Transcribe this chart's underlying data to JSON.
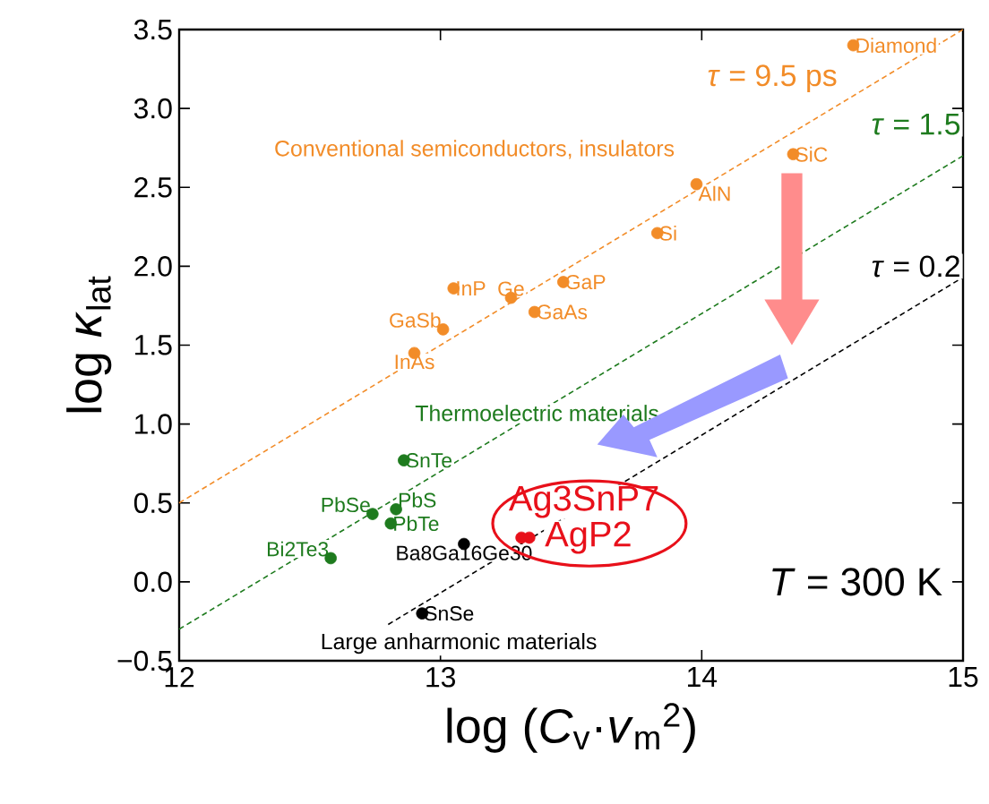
{
  "chart_data": {
    "type": "scatter",
    "xlabel": "log (*C*$_{v}$·*v*$_{m}$$^{2}$)",
    "ylabel": "log *κ*$_{lat}$",
    "xlim": [
      12,
      15
    ],
    "ylim": [
      -0.5,
      3.5
    ],
    "xticks": [
      12,
      13,
      14,
      15
    ],
    "yticks": [
      {
        "value": -0.5,
        "label": "−0.5"
      },
      {
        "value": 0,
        "label": "0.0"
      },
      {
        "value": 0.5,
        "label": "0.5"
      },
      {
        "value": 1,
        "label": "1.0"
      },
      {
        "value": 1.5,
        "label": "1.5"
      },
      {
        "value": 2,
        "label": "2.0"
      },
      {
        "value": 2.5,
        "label": "2.5"
      },
      {
        "value": 3,
        "label": "3.0"
      },
      {
        "value": 3.5,
        "label": "3.5"
      }
    ],
    "grid": false,
    "series": [
      {
        "type": "line",
        "line_style": "dashed",
        "marker": "none",
        "color": "#f28c28",
        "x": [
          12,
          15
        ],
        "values": [
          0.5,
          3.5
        ]
      },
      {
        "type": "line",
        "line_style": "dashed",
        "marker": "none",
        "color": "#1e7b1e",
        "x": [
          12,
          15
        ],
        "values": [
          -0.3,
          2.7
        ]
      },
      {
        "type": "line",
        "line_style": "dashed",
        "marker": "none",
        "color": "#000000",
        "x": [
          12.8,
          15
        ],
        "values": [
          -0.27,
          1.93
        ]
      },
      {
        "marker": "circle",
        "color": "#f28c28",
        "x": [
          14.58,
          14.35,
          13.98,
          13.83,
          13.47,
          13.36,
          13.27,
          13.05,
          13.01,
          12.9
        ],
        "values": [
          3.4,
          2.71,
          2.52,
          2.21,
          1.9,
          1.71,
          1.8,
          1.86,
          1.6,
          1.45
        ],
        "value_labels": [
          "Diamond",
          "SiC",
          "AlN",
          "Si",
          "GaP",
          "GaAs",
          "Ge",
          "InP",
          "GaSb",
          "InAs"
        ]
      },
      {
        "marker": "circle",
        "color": "#1e7b1e",
        "x": [
          12.86,
          12.83,
          12.74,
          12.81,
          12.58
        ],
        "values": [
          0.77,
          0.46,
          0.43,
          0.37,
          0.15
        ],
        "value_labels": [
          "SnTe",
          "PbS",
          "PbSe",
          "PbTe",
          "Bi2Te3"
        ]
      },
      {
        "marker": "circle",
        "color": "#000000",
        "x": [
          13.09,
          12.93
        ],
        "values": [
          0.24,
          -0.2
        ],
        "value_labels": [
          "Ba8Ga16Ge30",
          "SnSe"
        ]
      },
      {
        "marker": "circle",
        "color": "#e8101a",
        "x": [
          13.31,
          13.34
        ],
        "values": [
          0.28,
          0.28
        ],
        "value_labels": [
          "Ag3SnP7",
          "AgP2"
        ]
      }
    ],
    "annotations": [
      "*τ* = 9.5 ps",
      "*τ* = 1.5",
      "*τ* = 0.2",
      "Conventional semiconductors, insulators",
      "Thermoelectric materials",
      "Large anharmonic materials",
      "*T* = 300 K"
    ]
  }
}
